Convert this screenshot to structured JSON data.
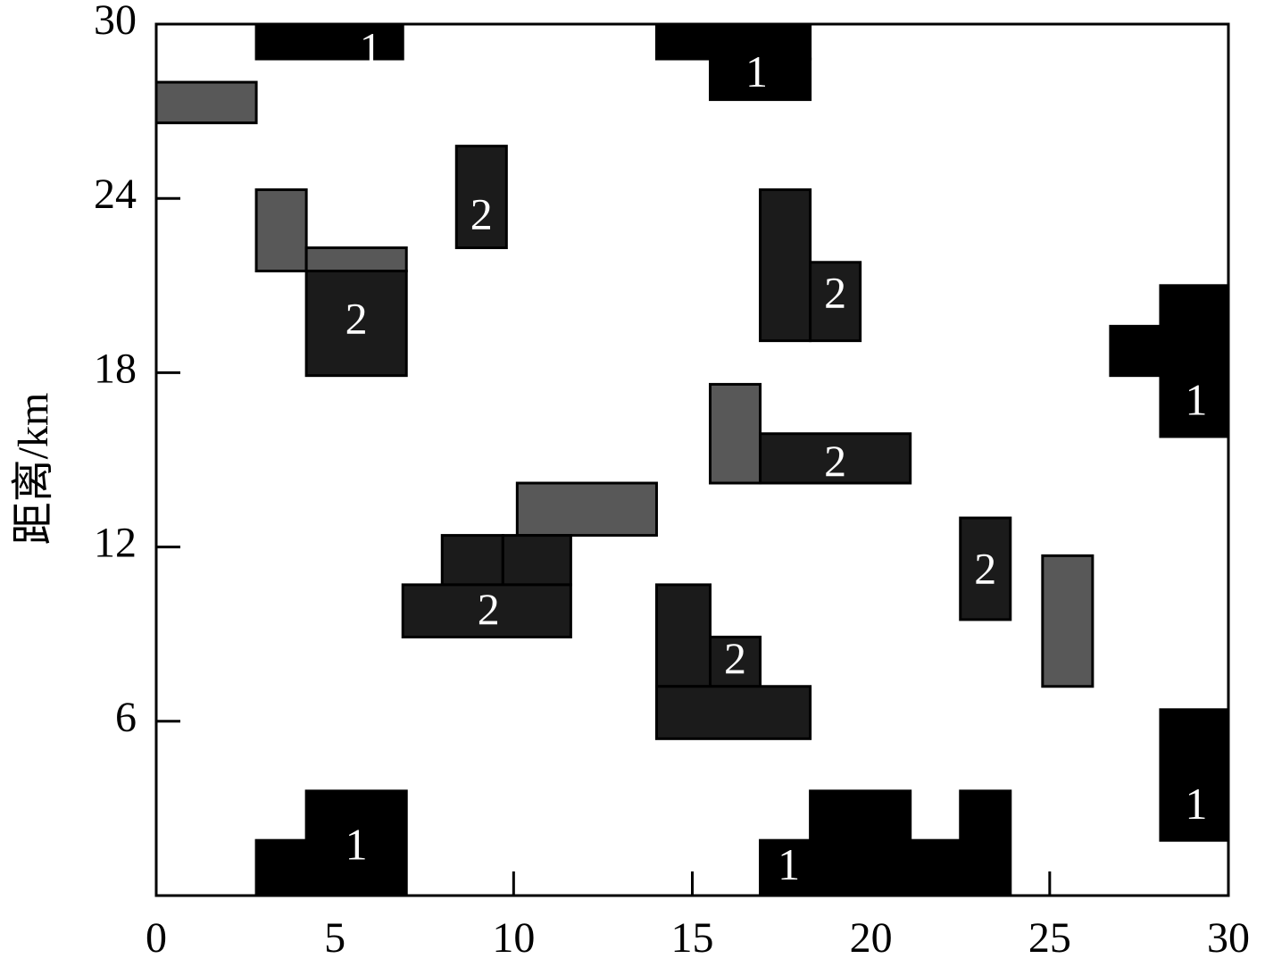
{
  "chart_data": {
    "type": "heatmap",
    "title": "",
    "xlabel": "",
    "ylabel": "距离/km",
    "xlim": [
      0,
      30
    ],
    "ylim": [
      0,
      30
    ],
    "x_ticks": [
      "0",
      "5",
      "10",
      "15",
      "20",
      "25",
      "30"
    ],
    "y_ticks": [
      "6",
      "12",
      "18",
      "24",
      "30"
    ],
    "grid": false,
    "legend": "none",
    "colors": {
      "1": "#000000",
      "2": "#1b1b1b",
      "other": "#585858",
      "edge": "#000000"
    },
    "cells": [
      {
        "x0": 2.8,
        "x1": 6.9,
        "y0": 28.8,
        "y1": 30,
        "cls": "1"
      },
      {
        "x0": 14.0,
        "x1": 18.3,
        "y0": 28.8,
        "y1": 30,
        "cls": "1"
      },
      {
        "x0": 15.5,
        "x1": 18.3,
        "y0": 27.4,
        "y1": 28.8,
        "cls": "1"
      },
      {
        "x0": 0.0,
        "x1": 2.8,
        "y0": 26.6,
        "y1": 28.0,
        "cls": "other"
      },
      {
        "x0": 8.4,
        "x1": 9.8,
        "y0": 22.3,
        "y1": 25.8,
        "cls": "2"
      },
      {
        "x0": 2.8,
        "x1": 4.2,
        "y0": 21.5,
        "y1": 24.3,
        "cls": "other"
      },
      {
        "x0": 4.2,
        "x1": 7.0,
        "y0": 21.5,
        "y1": 22.3,
        "cls": "other"
      },
      {
        "x0": 4.2,
        "x1": 7.0,
        "y0": 17.9,
        "y1": 21.5,
        "cls": "2"
      },
      {
        "x0": 16.9,
        "x1": 18.3,
        "y0": 19.1,
        "y1": 24.3,
        "cls": "2"
      },
      {
        "x0": 18.3,
        "x1": 19.7,
        "y0": 19.1,
        "y1": 21.8,
        "cls": "2"
      },
      {
        "x0": 28.1,
        "x1": 30.0,
        "y0": 15.8,
        "y1": 21.0,
        "cls": "1"
      },
      {
        "x0": 26.7,
        "x1": 28.1,
        "y0": 17.9,
        "y1": 19.6,
        "cls": "1"
      },
      {
        "x0": 15.5,
        "x1": 16.9,
        "y0": 14.2,
        "y1": 17.6,
        "cls": "other"
      },
      {
        "x0": 16.9,
        "x1": 21.1,
        "y0": 14.2,
        "y1": 15.9,
        "cls": "2"
      },
      {
        "x0": 10.1,
        "x1": 14.0,
        "y0": 12.4,
        "y1": 14.2,
        "cls": "other"
      },
      {
        "x0": 8.0,
        "x1": 9.7,
        "y0": 10.7,
        "y1": 12.4,
        "cls": "2"
      },
      {
        "x0": 9.7,
        "x1": 11.6,
        "y0": 10.7,
        "y1": 12.4,
        "cls": "2"
      },
      {
        "x0": 6.9,
        "x1": 11.6,
        "y0": 8.9,
        "y1": 10.7,
        "cls": "2"
      },
      {
        "x0": 22.5,
        "x1": 23.9,
        "y0": 9.5,
        "y1": 13.0,
        "cls": "2"
      },
      {
        "x0": 24.8,
        "x1": 26.2,
        "y0": 7.2,
        "y1": 11.7,
        "cls": "other"
      },
      {
        "x0": 14.0,
        "x1": 15.5,
        "y0": 7.2,
        "y1": 10.7,
        "cls": "2"
      },
      {
        "x0": 15.5,
        "x1": 16.9,
        "y0": 7.2,
        "y1": 8.9,
        "cls": "2"
      },
      {
        "x0": 14.0,
        "x1": 18.3,
        "y0": 5.4,
        "y1": 7.2,
        "cls": "2"
      },
      {
        "x0": 28.1,
        "x1": 30.0,
        "y0": 1.9,
        "y1": 6.4,
        "cls": "1"
      },
      {
        "x0": 2.8,
        "x1": 4.2,
        "y0": 0.0,
        "y1": 1.9,
        "cls": "1"
      },
      {
        "x0": 4.2,
        "x1": 7.0,
        "y0": 0.0,
        "y1": 3.6,
        "cls": "1"
      },
      {
        "x0": 16.9,
        "x1": 18.3,
        "y0": 0.0,
        "y1": 1.9,
        "cls": "1"
      },
      {
        "x0": 18.3,
        "x1": 21.1,
        "y0": 0.0,
        "y1": 3.6,
        "cls": "1"
      },
      {
        "x0": 21.1,
        "x1": 22.5,
        "y0": 0.0,
        "y1": 1.9,
        "cls": "1"
      },
      {
        "x0": 22.5,
        "x1": 23.9,
        "y0": 0.0,
        "y1": 3.6,
        "cls": "1"
      }
    ],
    "annotations": [
      {
        "text": "1",
        "x": 6.0,
        "y": 29.0
      },
      {
        "text": "1",
        "x": 16.8,
        "y": 28.2
      },
      {
        "text": "2",
        "x": 9.1,
        "y": 23.3
      },
      {
        "text": "2",
        "x": 5.6,
        "y": 19.7
      },
      {
        "text": "2",
        "x": 19.0,
        "y": 20.6
      },
      {
        "text": "1",
        "x": 29.1,
        "y": 16.9
      },
      {
        "text": "2",
        "x": 19.0,
        "y": 14.8
      },
      {
        "text": "2",
        "x": 9.3,
        "y": 9.7
      },
      {
        "text": "2",
        "x": 23.2,
        "y": 11.1
      },
      {
        "text": "2",
        "x": 16.2,
        "y": 8.0
      },
      {
        "text": "1",
        "x": 29.1,
        "y": 3.0
      },
      {
        "text": "1",
        "x": 5.6,
        "y": 1.6
      },
      {
        "text": "1",
        "x": 17.7,
        "y": 0.9
      }
    ]
  }
}
